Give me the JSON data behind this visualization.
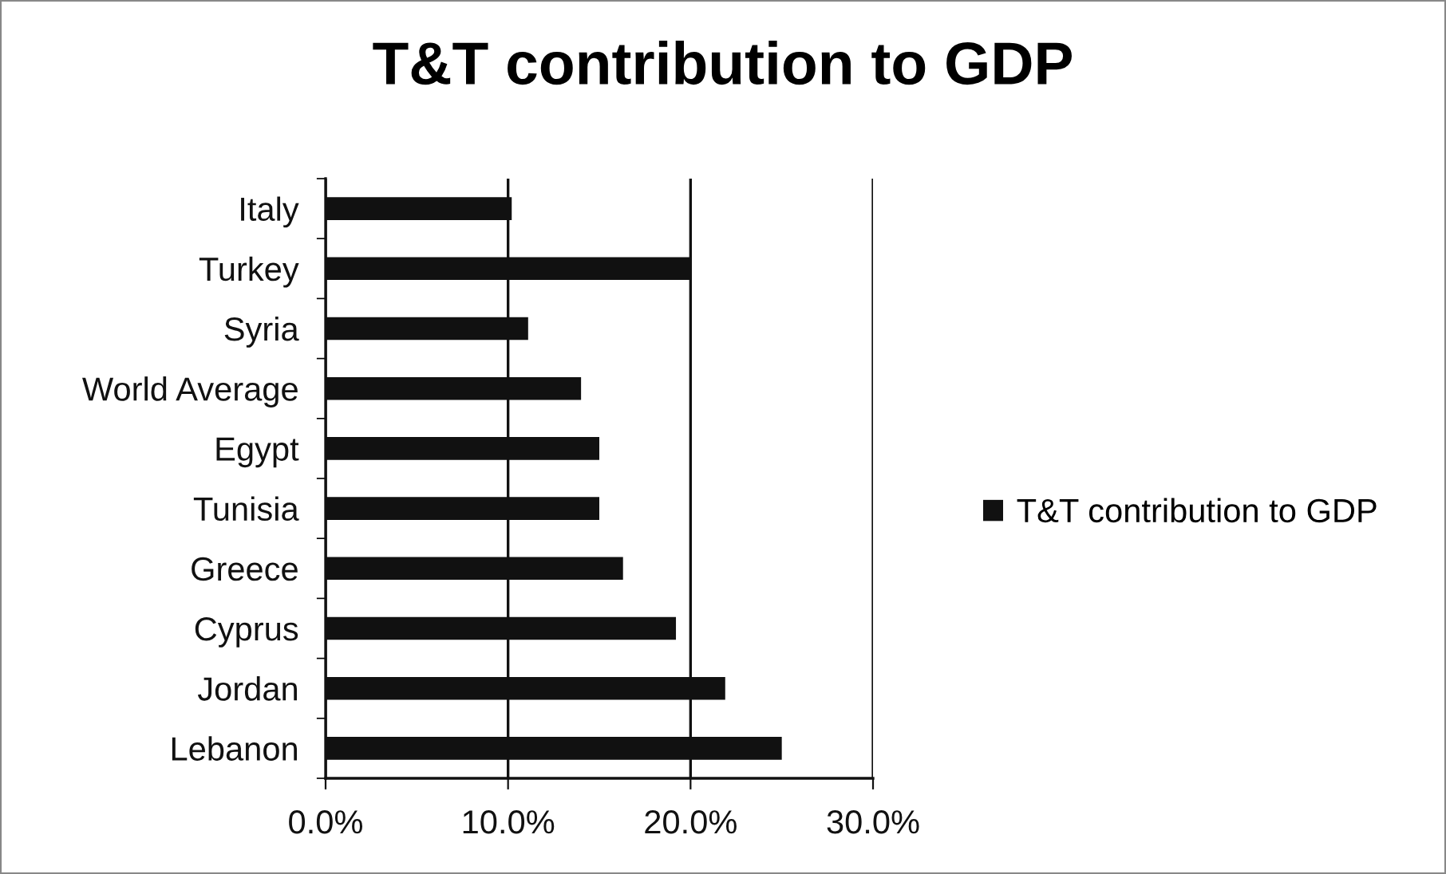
{
  "chart_data": {
    "type": "bar",
    "orientation": "horizontal",
    "title": "T&T contribution to GDP",
    "categories": [
      "Italy",
      "Turkey",
      "Syria",
      "World Average",
      "Egypt",
      "Tunisia",
      "Greece",
      "Cyprus",
      "Jordan",
      "Lebanon"
    ],
    "series": [
      {
        "name": "T&T contribution to GDP",
        "color": "#111111",
        "values": [
          10.2,
          20.0,
          11.1,
          14.0,
          15.0,
          15.0,
          16.3,
          19.2,
          21.9,
          25.0
        ]
      }
    ],
    "xlim": [
      0,
      30
    ],
    "xticks": [
      {
        "value": 0,
        "label": "0.0%"
      },
      {
        "value": 10,
        "label": "10.0%"
      },
      {
        "value": 20,
        "label": "20.0%"
      },
      {
        "value": 30,
        "label": "30.0%"
      }
    ],
    "grid": "x",
    "legend": "right"
  }
}
